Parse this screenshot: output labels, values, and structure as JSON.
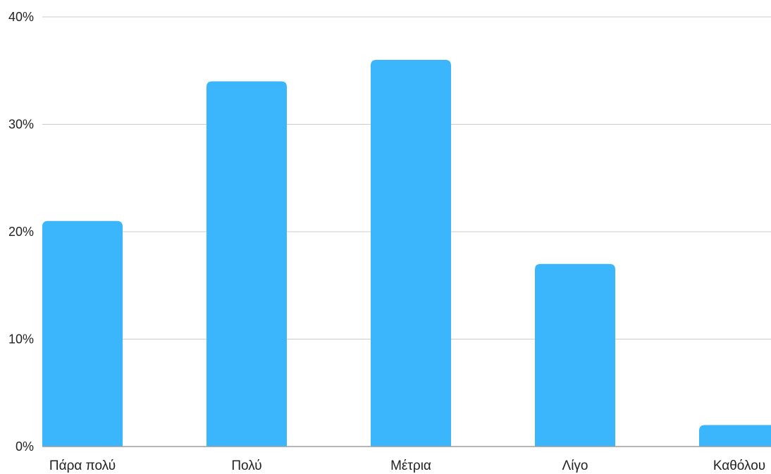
{
  "chart_data": {
    "type": "bar",
    "title": "",
    "xlabel": "",
    "ylabel": "",
    "categories": [
      "Πάρα πολύ",
      "Πολύ",
      "Μέτρια",
      "Λίγο",
      "Καθόλου"
    ],
    "values": [
      21,
      34,
      36,
      17,
      2
    ],
    "unit": "%",
    "ylim": [
      0,
      40
    ],
    "yticks": [
      0,
      10,
      20,
      30,
      40
    ],
    "ytick_labels": [
      "0%",
      "10%",
      "20%",
      "30%",
      "40%"
    ],
    "grid": true,
    "legend": "none",
    "bar_color": "#3bb5fb",
    "grid_color": "#cccccc",
    "axis_color": "#9e9e9e"
  }
}
